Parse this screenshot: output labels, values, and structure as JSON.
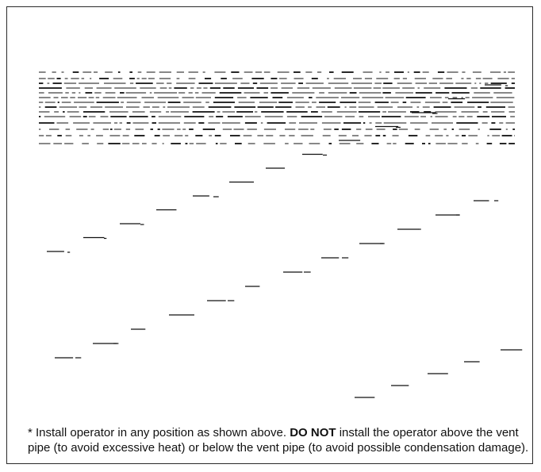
{
  "note": {
    "prefix": "* Install operator in any position as shown above. ",
    "emphasis": "DO NOT",
    "suffix": " install the operator above the vent pipe (to avoid excessive heat) or below the vent pipe (to avoid possible condensation damage)."
  },
  "colors": {
    "ink": "#111111",
    "border": "#2a2a2a",
    "background": "#ffffff"
  }
}
